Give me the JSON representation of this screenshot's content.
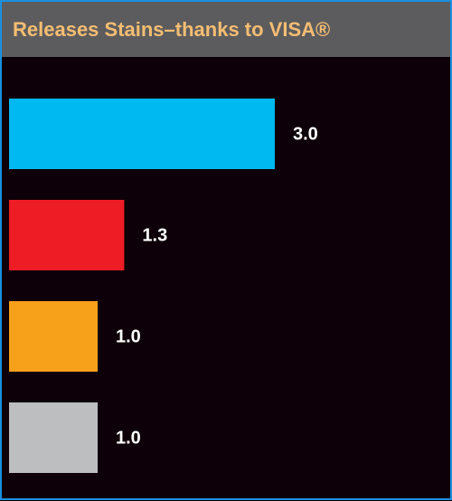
{
  "chart_data": {
    "type": "bar",
    "orientation": "horizontal",
    "title": "Releases Stains–thanks to VISA®",
    "values": [
      3.0,
      1.3,
      1.0,
      1.0
    ],
    "value_labels": [
      "3.0",
      "1.3",
      "1.0",
      "1.0"
    ],
    "colors": [
      "#00b9f1",
      "#ee1c25",
      "#f7a11a",
      "#bcbec0"
    ],
    "xlim": [
      0,
      5
    ]
  }
}
